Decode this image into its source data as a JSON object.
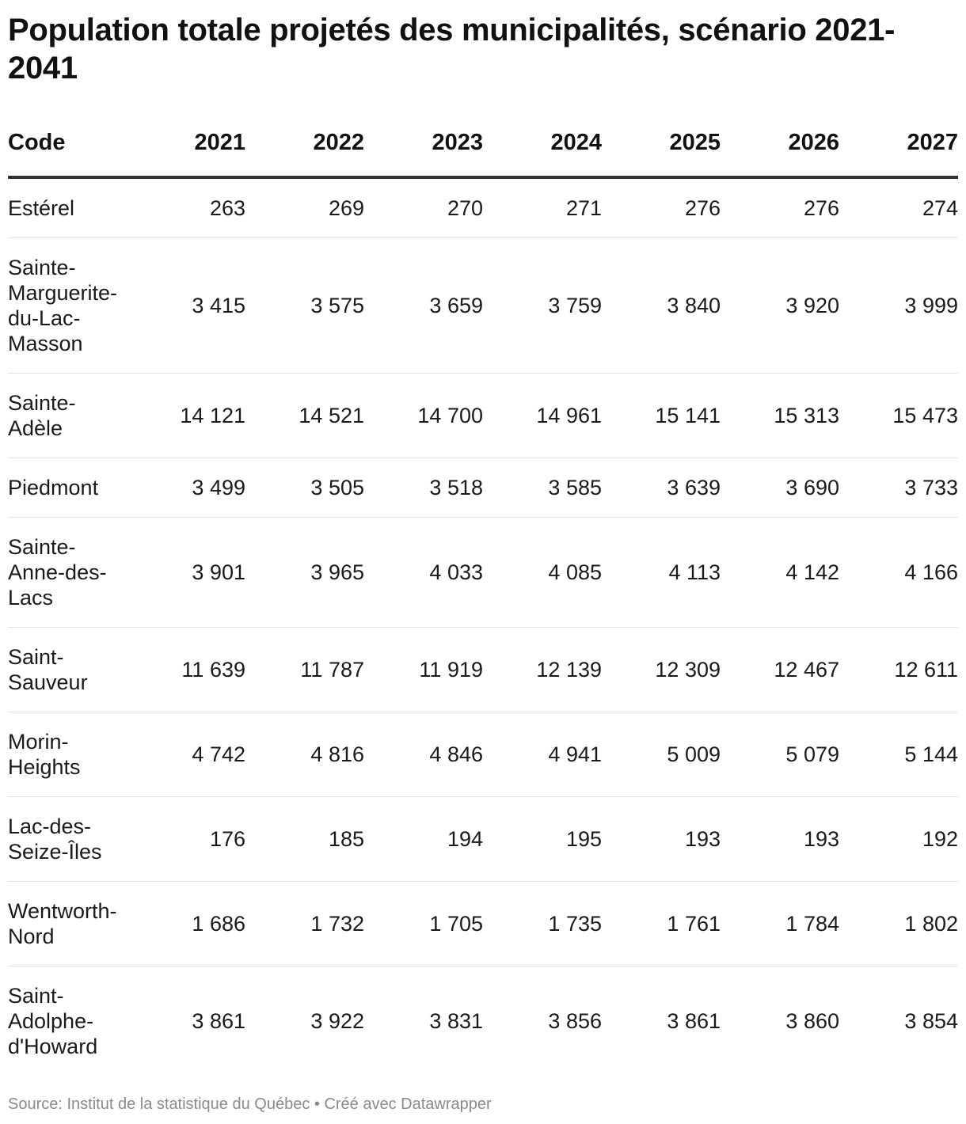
{
  "title": "Population totale projetés des municipalités, scénario 2021-2041",
  "source": "Source: Institut de la statistique du Québec • Créé avec Datawrapper",
  "chart_data": {
    "type": "table",
    "title": "Population totale projetés des municipalités, scénario 2021-2041",
    "columns": [
      "Code",
      "2021",
      "2022",
      "2023",
      "2024",
      "2025",
      "2026",
      "2027"
    ],
    "rows": [
      {
        "name": "Estérel",
        "values": [
          "263",
          "269",
          "270",
          "271",
          "276",
          "276",
          "274"
        ]
      },
      {
        "name": "Sainte-Marguerite-du-Lac-Masson",
        "values": [
          "3 415",
          "3 575",
          "3 659",
          "3 759",
          "3 840",
          "3 920",
          "3 999"
        ]
      },
      {
        "name": "Sainte-Adèle",
        "values": [
          "14 121",
          "14 521",
          "14 700",
          "14 961",
          "15 141",
          "15 313",
          "15 473"
        ]
      },
      {
        "name": "Piedmont",
        "values": [
          "3 499",
          "3 505",
          "3 518",
          "3 585",
          "3 639",
          "3 690",
          "3 733"
        ]
      },
      {
        "name": "Sainte-Anne-des-Lacs",
        "values": [
          "3 901",
          "3 965",
          "4 033",
          "4 085",
          "4 113",
          "4 142",
          "4 166"
        ]
      },
      {
        "name": "Saint-Sauveur",
        "values": [
          "11 639",
          "11 787",
          "11 919",
          "12 139",
          "12 309",
          "12 467",
          "12 611"
        ]
      },
      {
        "name": "Morin-Heights",
        "values": [
          "4 742",
          "4 816",
          "4 846",
          "4 941",
          "5 009",
          "5 079",
          "5 144"
        ]
      },
      {
        "name": "Lac-des-Seize-Îles",
        "values": [
          "176",
          "185",
          "194",
          "195",
          "193",
          "193",
          "192"
        ]
      },
      {
        "name": "Wentworth-Nord",
        "values": [
          "1 686",
          "1 732",
          "1 705",
          "1 735",
          "1 761",
          "1 784",
          "1 802"
        ]
      },
      {
        "name": "Saint-Adolphe-d'Howard",
        "values": [
          "3 861",
          "3 922",
          "3 831",
          "3 856",
          "3 861",
          "3 860",
          "3 854"
        ]
      }
    ]
  }
}
